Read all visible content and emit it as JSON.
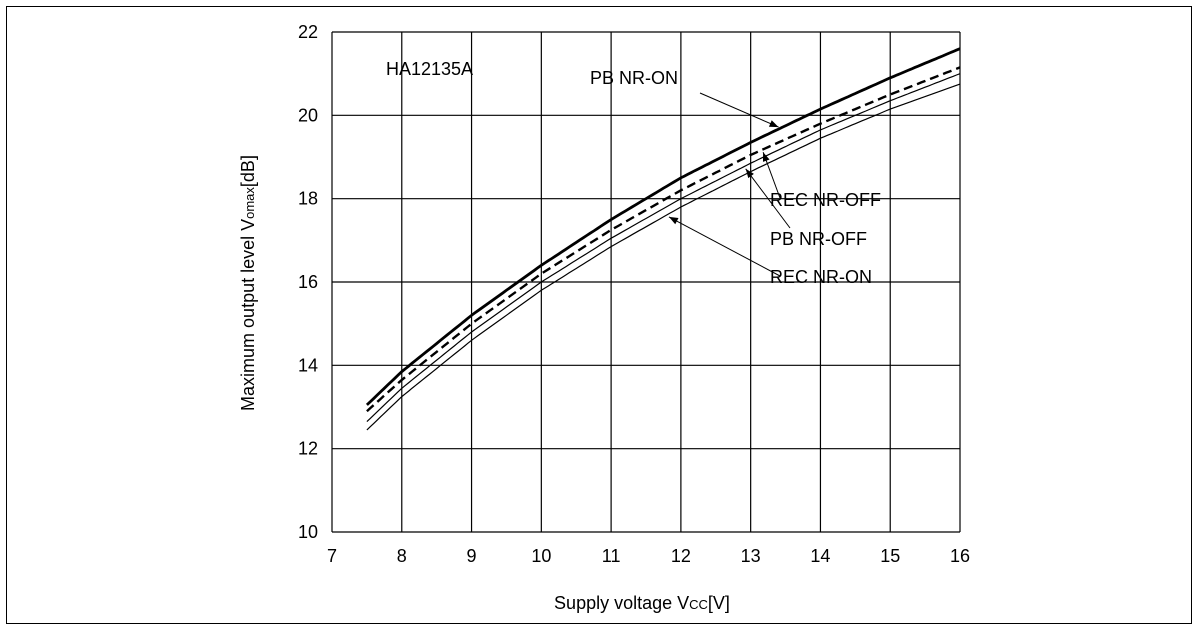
{
  "chart_data": {
    "type": "line",
    "xlabel": "Supply voltage V",
    "xlabel_sub": "CC",
    "xlabel_unit": "[V]",
    "ylabel_prefix": "Maximum output level V",
    "ylabel_sub": "omax",
    "ylabel_unit": "[dB]",
    "xlim": [
      7,
      16
    ],
    "ylim": [
      10,
      22
    ],
    "x_ticks": [
      7,
      8,
      9,
      10,
      11,
      12,
      13,
      14,
      15,
      16
    ],
    "y_ticks": [
      10,
      12,
      14,
      16,
      18,
      20,
      22
    ],
    "grid": true,
    "annotation": "HA12135A",
    "series": [
      {
        "name": "PB NR-ON",
        "style": "thick-solid",
        "x": [
          7.5,
          8,
          9,
          10,
          11,
          12,
          13,
          14,
          15,
          16
        ],
        "y": [
          13.05,
          13.85,
          15.2,
          16.4,
          17.5,
          18.5,
          19.35,
          20.15,
          20.9,
          21.6
        ]
      },
      {
        "name": "REC NR-OFF",
        "style": "dashed",
        "x": [
          7.5,
          8,
          9,
          10,
          11,
          12,
          13,
          14,
          15,
          16
        ],
        "y": [
          12.9,
          13.65,
          15.0,
          16.2,
          17.25,
          18.2,
          19.05,
          19.8,
          20.5,
          21.15
        ]
      },
      {
        "name": "PB NR-OFF",
        "style": "thin-solid",
        "x": [
          7.5,
          8,
          9,
          10,
          11,
          12,
          13,
          14,
          15,
          16
        ],
        "y": [
          12.65,
          13.45,
          14.8,
          16.0,
          17.05,
          18.0,
          18.85,
          19.65,
          20.35,
          21.0
        ]
      },
      {
        "name": "REC NR-ON",
        "style": "thin-solid",
        "x": [
          7.5,
          8,
          9,
          10,
          11,
          12,
          13,
          14,
          15,
          16
        ],
        "y": [
          12.45,
          13.25,
          14.6,
          15.8,
          16.85,
          17.8,
          18.65,
          19.45,
          20.15,
          20.75
        ]
      }
    ],
    "callouts": [
      {
        "label": "PB NR-ON",
        "series": 0,
        "at_x": 13.4
      },
      {
        "label": "REC NR-OFF",
        "series": 1,
        "at_x": 13.15
      },
      {
        "label": "PB NR-OFF",
        "series": 2,
        "at_x": 12.9
      },
      {
        "label": "REC NR-ON",
        "series": 3,
        "at_x": 11.8
      }
    ]
  }
}
